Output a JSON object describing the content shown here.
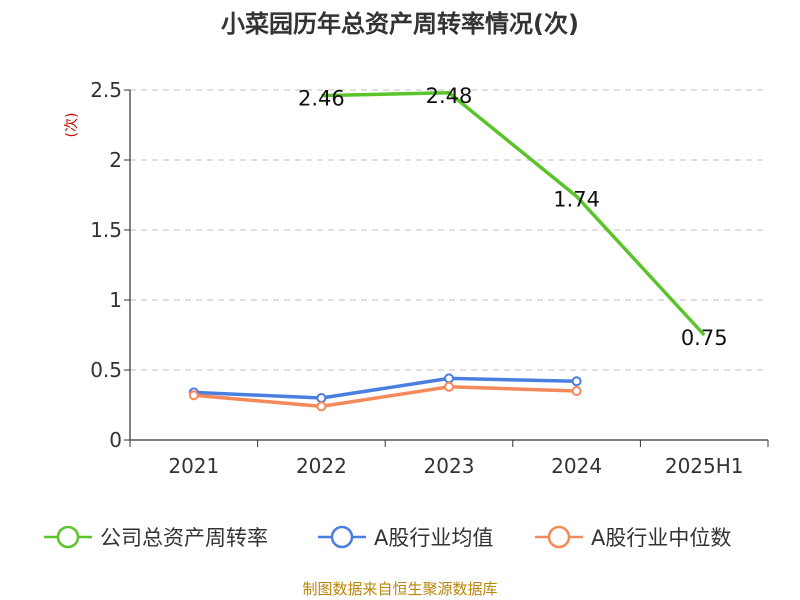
{
  "chart_data": {
    "type": "line",
    "title": "小菜园历年总资产周转率情况(次)",
    "ylabel": "(次)",
    "categories": [
      "2021",
      "2022",
      "2023",
      "2024",
      "2025H1"
    ],
    "y_ticks": [
      "0",
      "0.5",
      "1",
      "1.5",
      "2",
      "2.5"
    ],
    "ylim": [
      0,
      2.5
    ],
    "grid": true,
    "legend_position": "bottom",
    "series": [
      {
        "name": "公司总资产周转率",
        "color": "#5ac42a",
        "values": [
          null,
          2.46,
          2.48,
          1.74,
          0.75
        ],
        "labels": [
          "",
          "2.46",
          "2.48",
          "1.74",
          "0.75"
        ],
        "show_markers": false
      },
      {
        "name": "A股行业均值",
        "color": "#4a7fe0",
        "values": [
          0.34,
          0.3,
          0.44,
          0.42,
          null
        ],
        "show_markers": true
      },
      {
        "name": "A股行业中位数",
        "color": "#f5895a",
        "values": [
          0.32,
          0.24,
          0.38,
          0.35,
          null
        ],
        "show_markers": true
      }
    ]
  },
  "source": "制图数据来自恒生聚源数据库"
}
